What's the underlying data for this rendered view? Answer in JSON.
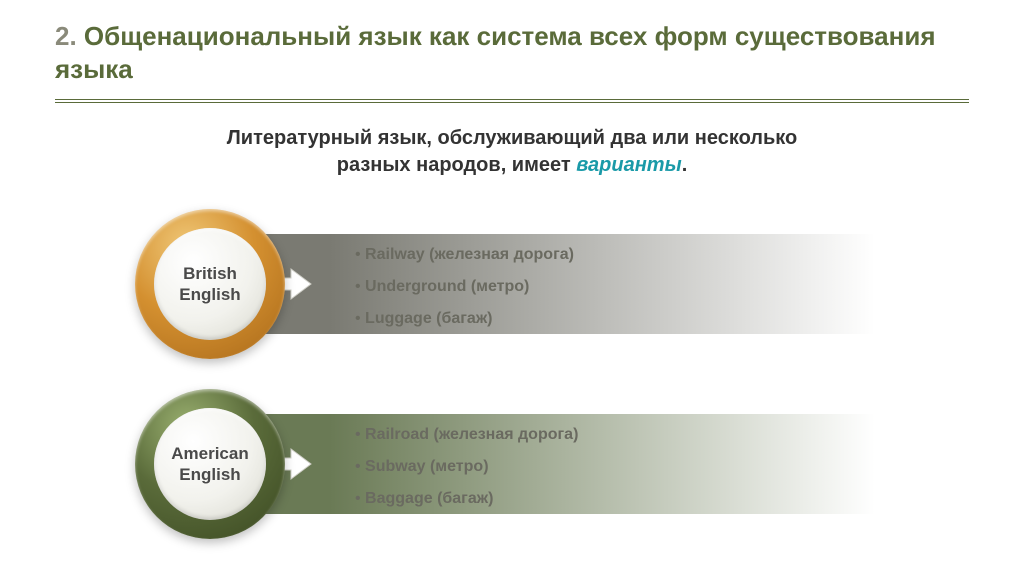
{
  "slide": {
    "number": "2.",
    "title": "Общенациональный язык как система всех форм существования языка",
    "title_num_color": "#8a8a7a",
    "title_text_color": "#5a6b3a",
    "divider_color": "#5a6b3a"
  },
  "subtitle": {
    "line1": "Литературный язык, обслуживающий два или несколько",
    "line2_prefix": "разных народов, имеет ",
    "line2_em": "варианты",
    "line2_suffix": ".",
    "text_color": "#333333",
    "em_color": "#1a9aa8"
  },
  "rows": [
    {
      "label": "British\nEnglish",
      "ring_color_outer": "#d49030",
      "ring_color_light": "#f0c878",
      "ring_color_dark": "#a86818",
      "bar_color_start": "#7a7a72",
      "bar_color_end": "#ffffff",
      "bullets": [
        {
          "term": "Railway",
          "trans": "(железная дорога)"
        },
        {
          "term": "Underground",
          "trans": "(метро)"
        },
        {
          "term": "Luggage",
          "trans": "(багаж)"
        }
      ]
    },
    {
      "label": "American\nEnglish",
      "ring_color_outer": "#5a6b3a",
      "ring_color_light": "#9ab070",
      "ring_color_dark": "#3a4820",
      "bar_color_start": "#6a7a55",
      "bar_color_end": "#ffffff",
      "bullets": [
        {
          "term": "Railroad",
          "trans": "(железная дорога)"
        },
        {
          "term": "Subway",
          "trans": "(метро)"
        },
        {
          "term": "Baggage",
          "trans": "(багаж)"
        }
      ]
    }
  ],
  "arrow_color": "#ffffff",
  "bullet_text_color": "#6a6a60"
}
